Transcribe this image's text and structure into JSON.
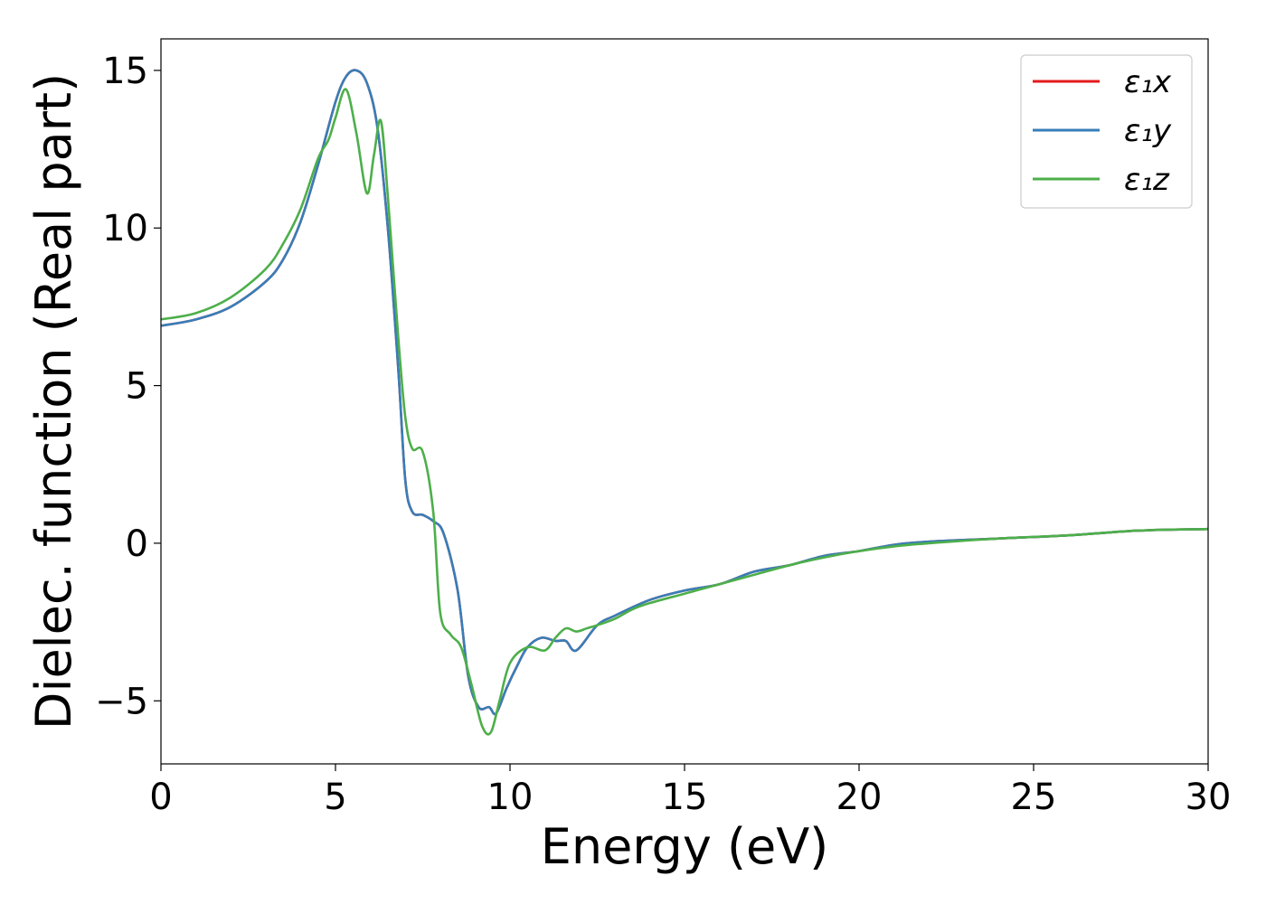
{
  "chart_data": {
    "type": "line",
    "title": "",
    "xlabel": "Energy (eV)",
    "ylabel": "Dielec. function (Real part)",
    "xlim": [
      0,
      30
    ],
    "ylim": [
      -7,
      16
    ],
    "xticks": [
      0,
      5,
      10,
      15,
      20,
      25,
      30
    ],
    "xtick_labels": [
      "0",
      "5",
      "10",
      "15",
      "20",
      "25",
      "30"
    ],
    "yticks": [
      -5,
      0,
      5,
      10,
      15
    ],
    "ytick_labels": [
      "−5",
      "0",
      "5",
      "10",
      "15"
    ],
    "grid": false,
    "legend_position": "top-right",
    "series": [
      {
        "name": "ε₁x",
        "color": "#e41a1c",
        "x": [
          0,
          1,
          2,
          3,
          3.5,
          4,
          4.5,
          5,
          5.3,
          5.6,
          5.9,
          6.2,
          6.5,
          6.8,
          7.0,
          7.2,
          7.5,
          7.8,
          8.1,
          8.5,
          8.8,
          9.1,
          9.4,
          9.6,
          9.9,
          10.2,
          10.5,
          10.9,
          11.3,
          11.6,
          11.9,
          12.5,
          13.0,
          14.0,
          15.0,
          16.0,
          17.0,
          18.0,
          19.0,
          20.0,
          21.0,
          22.0,
          24.0,
          26.0,
          28.0,
          30.0
        ],
        "y": [
          6.9,
          7.1,
          7.5,
          8.3,
          9.0,
          10.2,
          12.0,
          14.0,
          14.8,
          15.0,
          14.6,
          13.2,
          10.0,
          5.5,
          2.0,
          1.0,
          0.9,
          0.7,
          0.3,
          -1.5,
          -4.2,
          -5.2,
          -5.2,
          -5.4,
          -4.6,
          -3.9,
          -3.3,
          -3.0,
          -3.1,
          -3.1,
          -3.4,
          -2.6,
          -2.3,
          -1.8,
          -1.5,
          -1.3,
          -0.9,
          -0.7,
          -0.4,
          -0.25,
          -0.05,
          0.05,
          0.15,
          0.25,
          0.4,
          0.45
        ]
      },
      {
        "name": "ε₁y",
        "color": "#377eb8",
        "x": [
          0,
          1,
          2,
          3,
          3.5,
          4,
          4.5,
          5,
          5.3,
          5.6,
          5.9,
          6.2,
          6.5,
          6.8,
          7.0,
          7.2,
          7.5,
          7.8,
          8.1,
          8.5,
          8.8,
          9.1,
          9.4,
          9.6,
          9.9,
          10.2,
          10.5,
          10.9,
          11.3,
          11.6,
          11.9,
          12.5,
          13.0,
          14.0,
          15.0,
          16.0,
          17.0,
          18.0,
          19.0,
          20.0,
          21.0,
          22.0,
          24.0,
          26.0,
          28.0,
          30.0
        ],
        "y": [
          6.9,
          7.1,
          7.5,
          8.3,
          9.0,
          10.2,
          12.0,
          14.0,
          14.8,
          15.0,
          14.6,
          13.2,
          10.0,
          5.5,
          2.0,
          1.0,
          0.9,
          0.7,
          0.3,
          -1.5,
          -4.2,
          -5.2,
          -5.2,
          -5.4,
          -4.6,
          -3.9,
          -3.3,
          -3.0,
          -3.1,
          -3.1,
          -3.4,
          -2.6,
          -2.3,
          -1.8,
          -1.5,
          -1.3,
          -0.9,
          -0.7,
          -0.4,
          -0.25,
          -0.05,
          0.05,
          0.15,
          0.25,
          0.4,
          0.45
        ]
      },
      {
        "name": "ε₁z",
        "color": "#4daf4a",
        "x": [
          0,
          1,
          2,
          3,
          3.5,
          4,
          4.5,
          4.8,
          5.0,
          5.3,
          5.6,
          5.9,
          6.1,
          6.3,
          6.5,
          6.8,
          7.0,
          7.2,
          7.5,
          7.8,
          8.0,
          8.3,
          8.6,
          8.9,
          9.2,
          9.45,
          9.7,
          10.0,
          10.5,
          11.0,
          11.3,
          11.6,
          11.9,
          12.2,
          12.5,
          13.0,
          13.5,
          14.0,
          15.0,
          16.0,
          17.0,
          18.0,
          19.0,
          20.0,
          21.0,
          22.0,
          24.0,
          26.0,
          28.0,
          30.0
        ],
        "y": [
          7.1,
          7.3,
          7.8,
          8.7,
          9.5,
          10.6,
          12.2,
          12.8,
          13.5,
          14.4,
          13.0,
          11.1,
          12.3,
          13.4,
          11.0,
          6.5,
          4.0,
          3.0,
          2.9,
          1.0,
          -2.2,
          -2.9,
          -3.3,
          -4.5,
          -5.8,
          -6.0,
          -5.0,
          -3.8,
          -3.3,
          -3.4,
          -3.0,
          -2.7,
          -2.8,
          -2.7,
          -2.6,
          -2.4,
          -2.1,
          -1.9,
          -1.6,
          -1.3,
          -1.0,
          -0.7,
          -0.45,
          -0.25,
          -0.1,
          0.0,
          0.15,
          0.25,
          0.4,
          0.45
        ]
      }
    ]
  }
}
